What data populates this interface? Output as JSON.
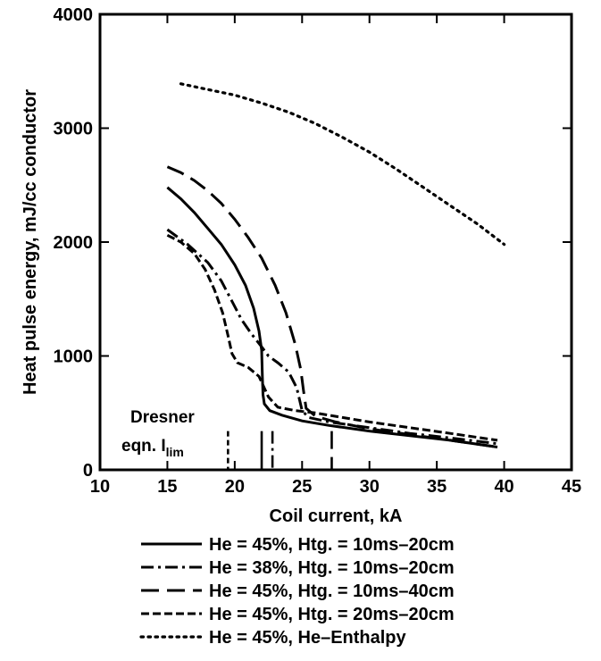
{
  "chart_data": {
    "type": "line",
    "title": "",
    "xlabel": "Coil current, kA",
    "ylabel": "Heat pulse energy, mJ/cc conductor",
    "xlim": [
      10,
      45
    ],
    "ylim": [
      0,
      4000
    ],
    "xticks": [
      "10",
      "15",
      "20",
      "25",
      "30",
      "35",
      "40",
      "45"
    ],
    "yticks": [
      "0",
      "1000",
      "2000",
      "3000",
      "4000"
    ],
    "grid": false,
    "legend_position": "below plot",
    "annotation": {
      "line1": "Dresner",
      "line2_prefix": "eqn. I",
      "line2_subscript": "lim"
    },
    "limit_markers": [
      {
        "x": 19.5,
        "style": "dashed"
      },
      {
        "x": 22.0,
        "style": "solid"
      },
      {
        "x": 22.8,
        "style": "dashdot"
      },
      {
        "x": 27.2,
        "style": "longdash"
      }
    ],
    "series": [
      {
        "name": "He = 45%, Htg. = 10ms–20cm",
        "style": "solid",
        "points": [
          [
            15,
            2480
          ],
          [
            16,
            2380
          ],
          [
            17,
            2260
          ],
          [
            18,
            2120
          ],
          [
            19,
            1980
          ],
          [
            20,
            1800
          ],
          [
            20.8,
            1620
          ],
          [
            21.4,
            1420
          ],
          [
            21.8,
            1220
          ],
          [
            22.0,
            1050
          ],
          [
            22.05,
            820
          ],
          [
            22.1,
            660
          ],
          [
            22.2,
            580
          ],
          [
            22.6,
            520
          ],
          [
            23.5,
            480
          ],
          [
            25,
            430
          ],
          [
            27,
            390
          ],
          [
            30,
            340
          ],
          [
            33,
            300
          ],
          [
            36,
            260
          ],
          [
            39.5,
            200
          ]
        ]
      },
      {
        "name": "He = 38%, Htg. = 10ms–20cm",
        "style": "dashdot",
        "points": [
          [
            15,
            2110
          ],
          [
            16.5,
            1980
          ],
          [
            18,
            1820
          ],
          [
            19,
            1660
          ],
          [
            19.8,
            1480
          ],
          [
            20.5,
            1320
          ],
          [
            21.2,
            1200
          ],
          [
            22,
            1080
          ],
          [
            22.5,
            1000
          ],
          [
            23.2,
            940
          ],
          [
            24,
            860
          ],
          [
            24.6,
            720
          ],
          [
            25,
            520
          ],
          [
            25.5,
            460
          ],
          [
            27,
            420
          ],
          [
            30,
            370
          ],
          [
            33,
            320
          ],
          [
            36,
            280
          ],
          [
            39.5,
            230
          ]
        ]
      },
      {
        "name": "He = 45%, Htg. = 10ms–40cm",
        "style": "longdash",
        "points": [
          [
            15,
            2660
          ],
          [
            16,
            2610
          ],
          [
            17,
            2540
          ],
          [
            18,
            2450
          ],
          [
            19,
            2340
          ],
          [
            20,
            2200
          ],
          [
            21,
            2040
          ],
          [
            22,
            1860
          ],
          [
            23,
            1620
          ],
          [
            23.8,
            1380
          ],
          [
            24.5,
            1100
          ],
          [
            24.9,
            880
          ],
          [
            25.1,
            700
          ],
          [
            25.3,
            540
          ],
          [
            26,
            470
          ],
          [
            27.5,
            420
          ],
          [
            30,
            360
          ],
          [
            33,
            310
          ],
          [
            36,
            260
          ],
          [
            39.5,
            200
          ]
        ]
      },
      {
        "name": "He = 45%, Htg. = 20ms–20cm",
        "style": "shortdash",
        "points": [
          [
            15,
            2060
          ],
          [
            16,
            2000
          ],
          [
            17,
            1900
          ],
          [
            17.8,
            1760
          ],
          [
            18.5,
            1580
          ],
          [
            19.1,
            1380
          ],
          [
            19.5,
            1180
          ],
          [
            19.8,
            1020
          ],
          [
            20.2,
            940
          ],
          [
            21,
            900
          ],
          [
            21.8,
            820
          ],
          [
            22.5,
            640
          ],
          [
            23.2,
            550
          ],
          [
            24.5,
            520
          ],
          [
            26,
            500
          ],
          [
            28,
            460
          ],
          [
            30,
            420
          ],
          [
            33,
            370
          ],
          [
            36,
            320
          ],
          [
            39.5,
            260
          ]
        ]
      },
      {
        "name": "He = 45%, He–Enthalpy",
        "style": "dotted",
        "points": [
          [
            16,
            3390
          ],
          [
            18,
            3340
          ],
          [
            20,
            3290
          ],
          [
            22,
            3220
          ],
          [
            24,
            3140
          ],
          [
            26,
            3040
          ],
          [
            28,
            2920
          ],
          [
            30,
            2790
          ],
          [
            32,
            2640
          ],
          [
            34,
            2480
          ],
          [
            36,
            2320
          ],
          [
            38,
            2160
          ],
          [
            40,
            1980
          ]
        ]
      }
    ]
  }
}
